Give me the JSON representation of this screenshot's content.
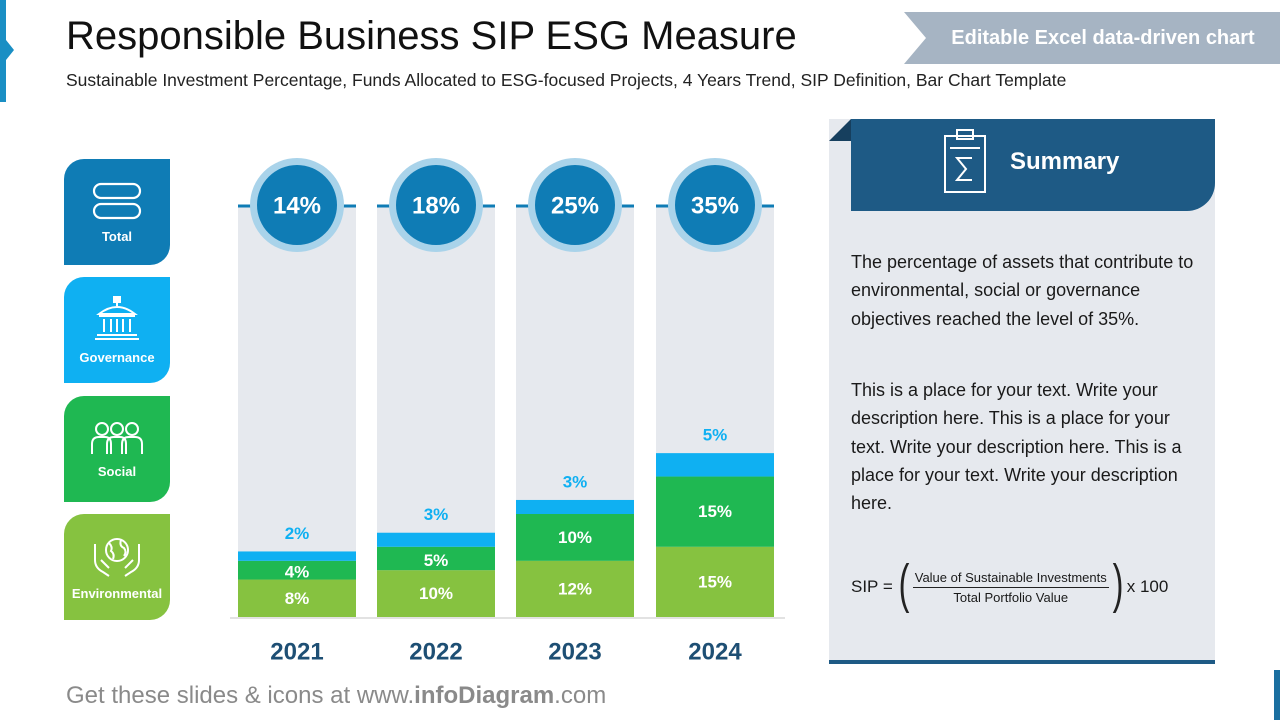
{
  "header": {
    "title": "Responsible Business SIP ESG Measure",
    "subtitle": "Sustainable Investment Percentage, Funds Allocated to ESG-focused Projects, 4 Years Trend, SIP Definition, Bar Chart Template",
    "badge": "Editable Excel data-driven chart"
  },
  "categories": [
    {
      "label": "Total",
      "icon": "pill-stack-icon",
      "color": "#0f7cb5"
    },
    {
      "label": "Governance",
      "icon": "government-building-icon",
      "color": "#0fb0f2"
    },
    {
      "label": "Social",
      "icon": "people-group-icon",
      "color": "#1fb852"
    },
    {
      "label": "Environmental",
      "icon": "hands-globe-icon",
      "color": "#86c240"
    }
  ],
  "chart_data": {
    "type": "bar",
    "stacked": true,
    "categories": [
      "2021",
      "2022",
      "2023",
      "2024"
    ],
    "series": [
      {
        "name": "Environmental",
        "color": "#86c240",
        "values": [
          8,
          10,
          12,
          15
        ],
        "labels": [
          "8%",
          "10%",
          "12%",
          "15%"
        ]
      },
      {
        "name": "Social",
        "color": "#1fb852",
        "values": [
          4,
          5,
          10,
          15
        ],
        "labels": [
          "4%",
          "5%",
          "10%",
          "15%"
        ]
      },
      {
        "name": "Governance",
        "color": "#0fb0f2",
        "values": [
          2,
          3,
          3,
          5
        ],
        "labels": [
          "2%",
          "3%",
          "3%",
          "5%"
        ]
      }
    ],
    "totals": [
      "14%",
      "18%",
      "25%",
      "35%"
    ],
    "total_color": "#0f7cb5",
    "background_color": "#e6e9ee",
    "ylim": [
      0,
      88
    ],
    "grid": false,
    "legend": "left"
  },
  "summary": {
    "title": "Summary",
    "icon": "clipboard-sigma-icon",
    "paragraph1": "The percentage of assets that contribute to environmental, social or governance objectives reached the level of 35%.",
    "paragraph2": "This is a place for your text. Write your description here. This is a place for your text. Write your description here. This is a place for your text. Write your description here.",
    "formula": {
      "lhs": "SIP =",
      "numerator": "Value of Sustainable Investments",
      "denominator": "Total Portfolio Value",
      "multiplier": "x 100"
    }
  },
  "footer": {
    "prefix": "Get these slides & icons at www.",
    "brand": "infoDiagram",
    "suffix": ".com"
  }
}
